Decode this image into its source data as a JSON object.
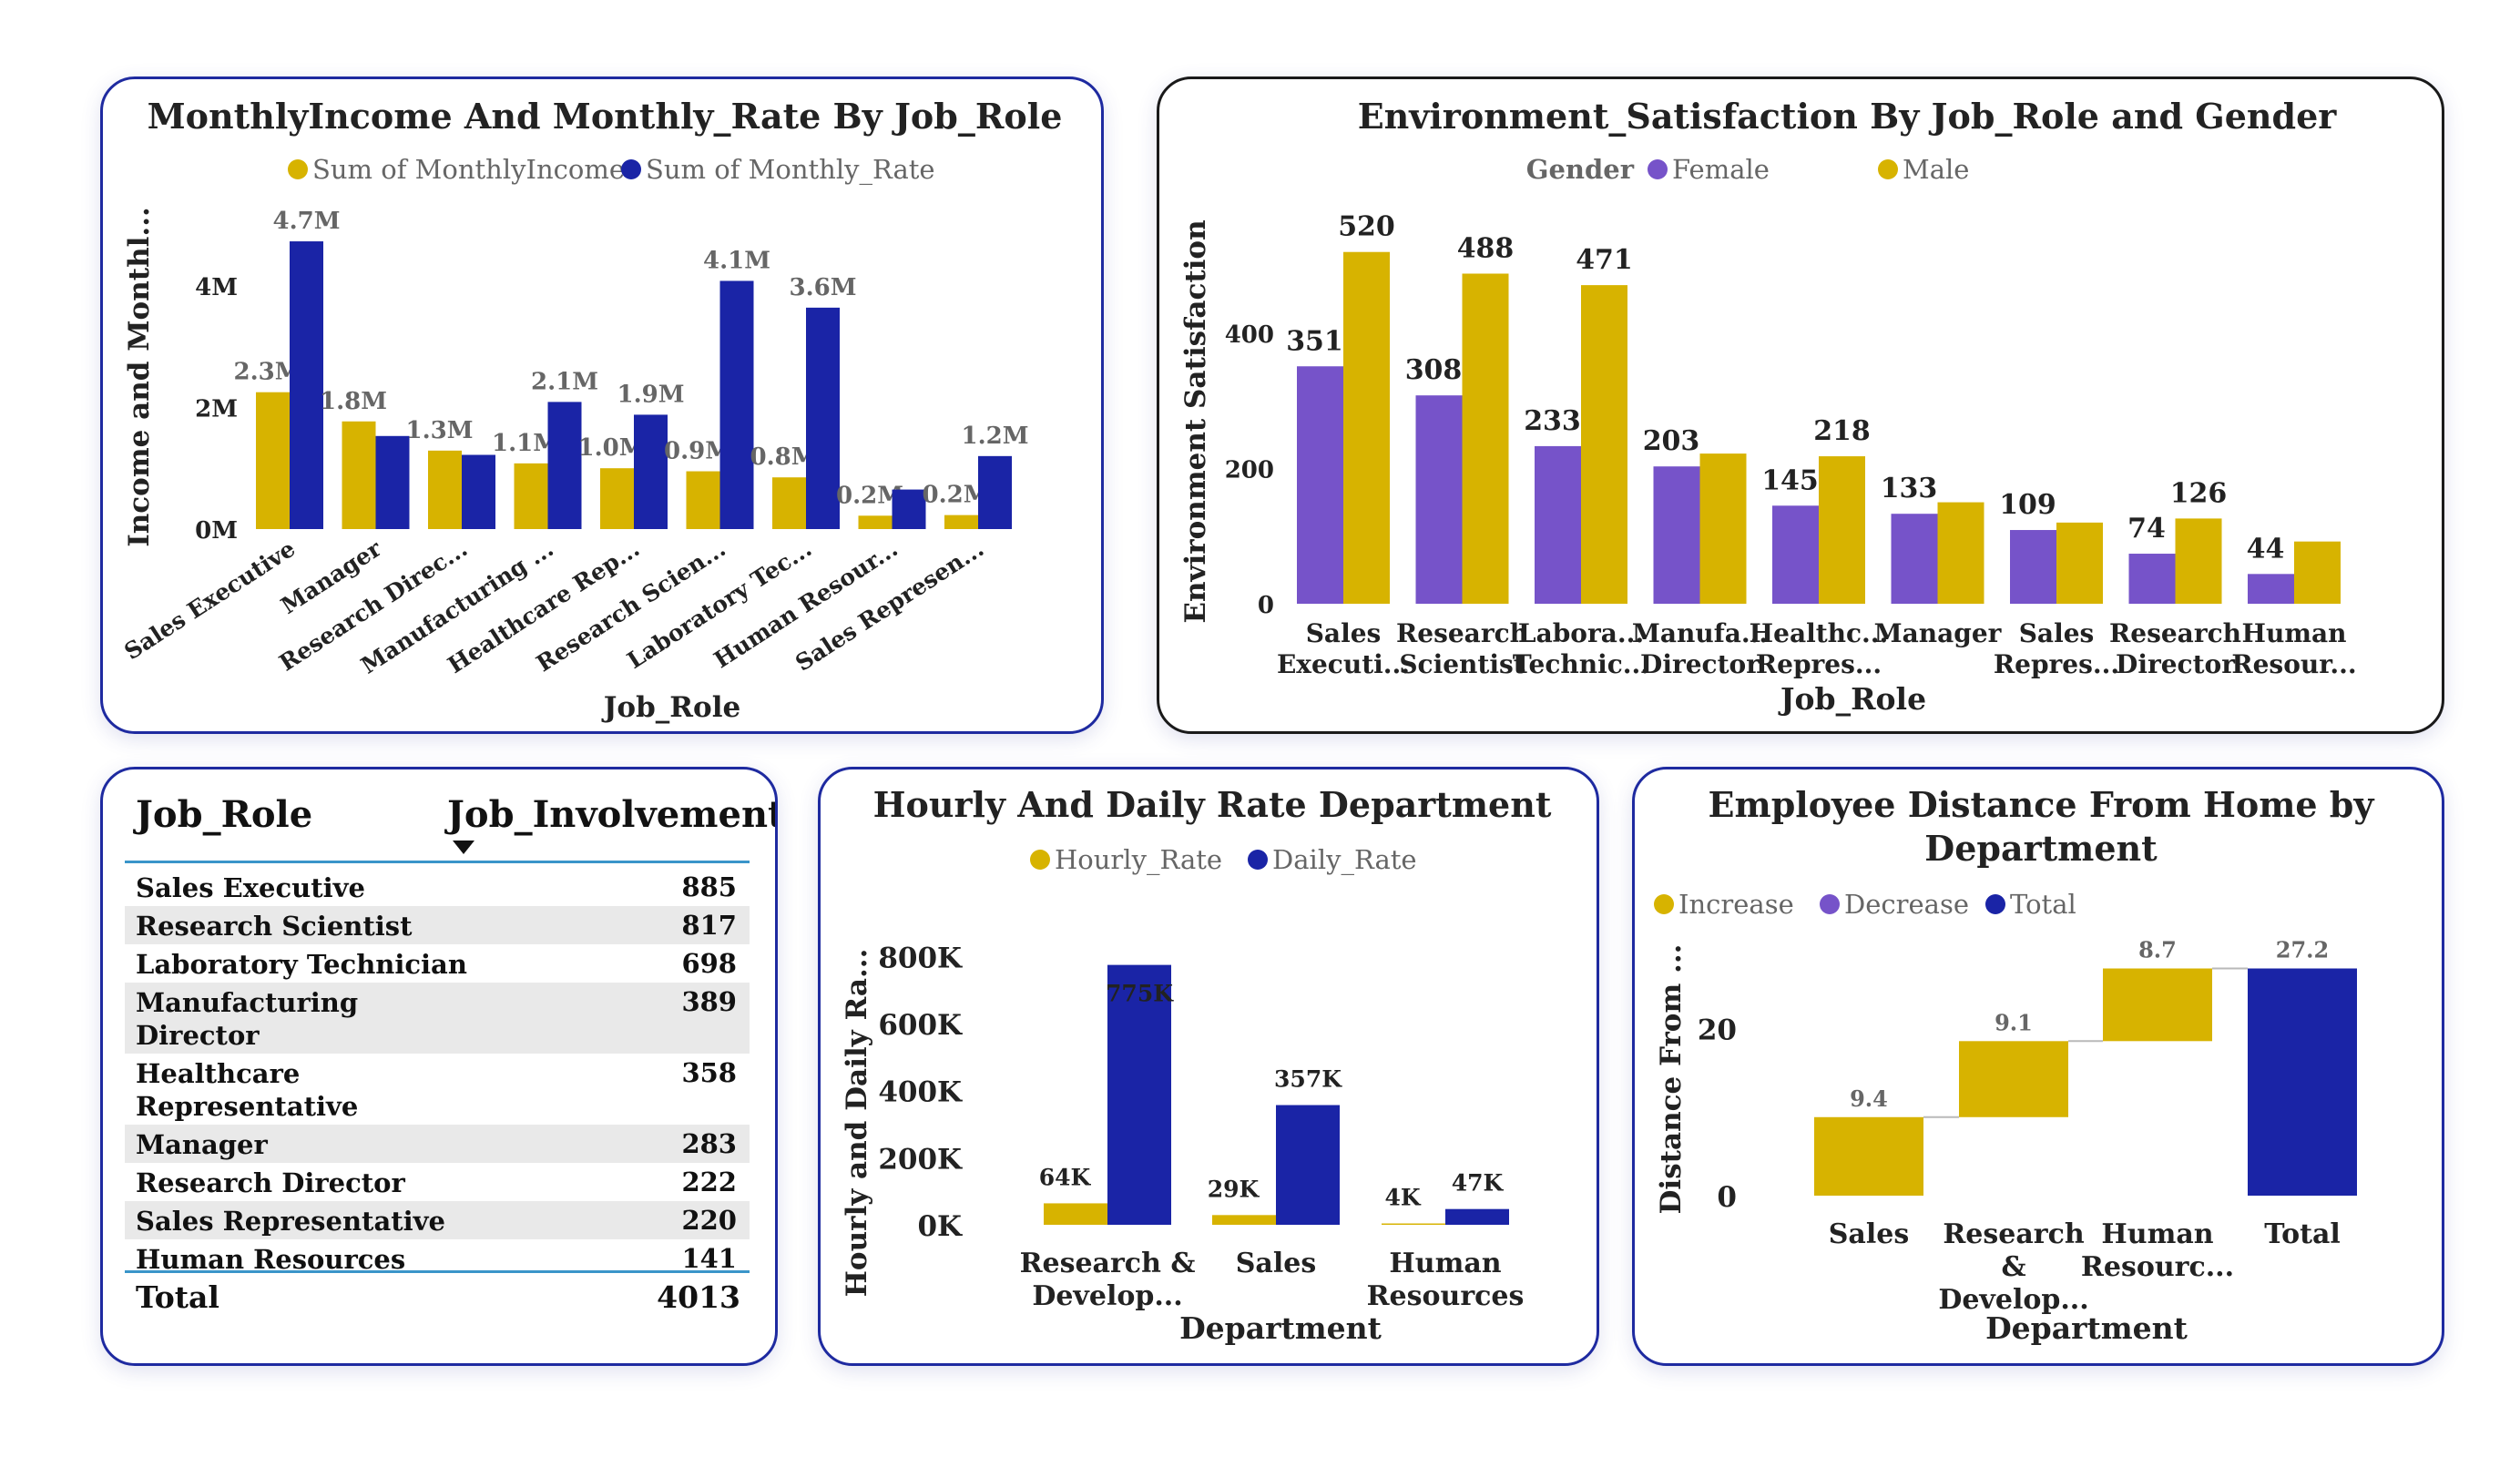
{
  "colors": {
    "gold": "#d7b300",
    "navy": "#1a24a6",
    "purple": "#7653c9",
    "border": "#1e2aa0"
  },
  "chart_data": [
    {
      "id": "income_rate",
      "type": "bar",
      "title": "MonthlyIncome And Monthly_Rate By Job_Role",
      "xlabel": "Job_Role",
      "ylabel": "Income and Monthl...",
      "ylim": [
        0,
        5000000
      ],
      "yticks": [
        "0M",
        "2M",
        "4M"
      ],
      "ytick_values": [
        0,
        2000000,
        4000000
      ],
      "legend_position": "top",
      "categories": [
        "Sales Executive",
        "Manager",
        "Research Direc...",
        "Manufacturing ...",
        "Healthcare Rep...",
        "Research Scien...",
        "Laboratory Tec...",
        "Human Resour...",
        "Sales Represen..."
      ],
      "series": [
        {
          "name": "Sum of MonthlyIncome",
          "color": "#d7b300",
          "values": [
            2250000,
            1770000,
            1290000,
            1080000,
            1000000,
            950000,
            850000,
            220000,
            230000
          ],
          "labels": [
            "2.3M",
            "1.8M",
            "1.3M",
            "1.1M",
            "1.0M",
            "0.9M",
            "0.8M",
            "0.2M",
            "0.2M"
          ]
        },
        {
          "name": "Sum of Monthly_Rate",
          "color": "#1a24a6",
          "values": [
            4730000,
            1530000,
            1220000,
            2090000,
            1880000,
            4080000,
            3640000,
            650000,
            1200000
          ],
          "labels": [
            "4.7M",
            "",
            "",
            "2.1M",
            "1.9M",
            "4.1M",
            "3.6M",
            "",
            "1.2M"
          ]
        }
      ]
    },
    {
      "id": "env_satisfaction",
      "type": "bar",
      "title": "Environment_Satisfaction By Job_Role and Gender",
      "xlabel": "Job_Role",
      "ylabel": "Environment Satisfaction",
      "ylim": [
        0,
        560
      ],
      "yticks": [
        "0",
        "200",
        "400"
      ],
      "ytick_values": [
        0,
        200,
        400
      ],
      "legend_title": "Gender",
      "legend_position": "top",
      "categories": [
        [
          "Sales",
          "Executi..."
        ],
        [
          "Research",
          "Scientist"
        ],
        [
          "Labora...",
          "Technic..."
        ],
        [
          "Manufa...",
          "Director"
        ],
        [
          "Healthc...",
          "Repres..."
        ],
        [
          "Manager",
          ""
        ],
        [
          "Sales",
          "Repres..."
        ],
        [
          "Research",
          "Director"
        ],
        [
          "Human",
          "Resour..."
        ]
      ],
      "series": [
        {
          "name": "Female",
          "color": "#7653c9",
          "values": [
            351,
            308,
            233,
            203,
            145,
            133,
            109,
            74,
            44
          ],
          "labels": [
            "351",
            "308",
            "233",
            "203",
            "145",
            "133",
            "109",
            "74",
            "44"
          ]
        },
        {
          "name": "Male",
          "color": "#d7b300",
          "values": [
            520,
            488,
            471,
            222,
            218,
            150,
            120,
            126,
            92
          ],
          "labels": [
            "520",
            "488",
            "471",
            "",
            "218",
            "",
            "",
            "126",
            ""
          ]
        }
      ]
    },
    {
      "id": "job_involvement",
      "type": "table",
      "columns": [
        "Job_Role",
        "Job_Involvement"
      ],
      "rows": [
        [
          "Sales Executive",
          "885"
        ],
        [
          "Research Scientist",
          "817"
        ],
        [
          "Laboratory Technician",
          "698"
        ],
        [
          "Manufacturing Director",
          "389"
        ],
        [
          "Healthcare Representative",
          "358"
        ],
        [
          "Manager",
          "283"
        ],
        [
          "Research Director",
          "222"
        ],
        [
          "Sales Representative",
          "220"
        ],
        [
          "Human Resources",
          "141"
        ]
      ],
      "total_label": "Total",
      "total_value": "4013",
      "sort_icon": "sort-descending-icon"
    },
    {
      "id": "hourly_daily",
      "type": "bar",
      "title": "Hourly And Daily Rate Department",
      "xlabel": "Department",
      "ylabel": "Hourly and Daily Ra...",
      "ylim": [
        0,
        850000
      ],
      "yticks": [
        "0K",
        "200K",
        "400K",
        "600K",
        "800K"
      ],
      "ytick_values": [
        0,
        200000,
        400000,
        600000,
        800000
      ],
      "legend_position": "top",
      "categories": [
        [
          "Research &",
          "Develop..."
        ],
        [
          "Sales",
          ""
        ],
        [
          "Human",
          "Resources"
        ]
      ],
      "series": [
        {
          "name": "Hourly_Rate",
          "color": "#d7b300",
          "values": [
            64000,
            29000,
            4000
          ],
          "labels": [
            "64K",
            "29K",
            "4K"
          ]
        },
        {
          "name": "Daily_Rate",
          "color": "#1a24a6",
          "values": [
            775000,
            357000,
            47000
          ],
          "labels": [
            "775K",
            "357K",
            "47K"
          ]
        }
      ]
    },
    {
      "id": "distance_waterfall",
      "type": "bar",
      "subtype": "waterfall",
      "title": [
        "Employee Distance From Home by",
        "Department"
      ],
      "xlabel": "Department",
      "ylabel": "Distance From ...",
      "ylim": [
        0,
        29
      ],
      "yticks": [
        "0",
        "20"
      ],
      "ytick_values": [
        0,
        20
      ],
      "legend_position": "top",
      "legend": [
        {
          "name": "Increase",
          "color": "#d7b300"
        },
        {
          "name": "Decrease",
          "color": "#7653c9"
        },
        {
          "name": "Total",
          "color": "#1a24a6"
        }
      ],
      "categories": [
        [
          "Sales",
          "",
          ""
        ],
        [
          "Research",
          "&",
          "Develop..."
        ],
        [
          "Human",
          "Resourc...",
          ""
        ],
        [
          "Total",
          "",
          ""
        ]
      ],
      "values": [
        9.4,
        9.1,
        8.7,
        27.2
      ],
      "labels": [
        "9.4",
        "9.1",
        "8.7",
        "27.2"
      ],
      "kinds": [
        "increase",
        "increase",
        "increase",
        "total"
      ]
    }
  ]
}
